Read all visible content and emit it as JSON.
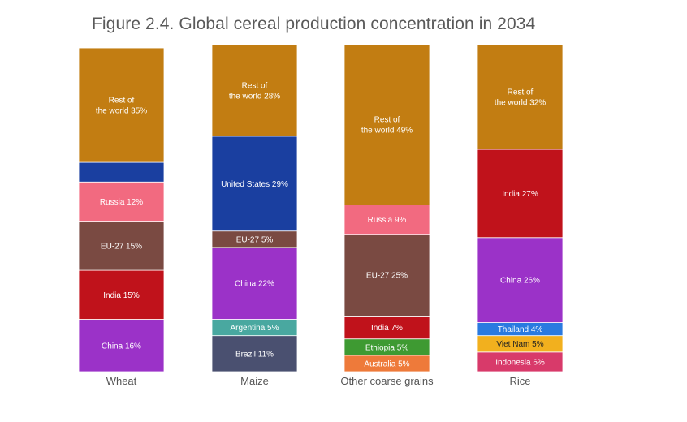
{
  "title": "Figure 2.4. Global cereal production concentration in 2034",
  "chart_data": {
    "type": "bar",
    "stacked": true,
    "normalized_percent": true,
    "title": "Figure 2.4. Global cereal production concentration in 2034",
    "ylim": [
      0,
      100
    ],
    "grid": false,
    "categories": [
      "Wheat",
      "Maize",
      "Other coarse grains",
      "Rice"
    ],
    "bars": [
      {
        "category": "Wheat",
        "segments": [
          {
            "name": "China",
            "value": 16,
            "label": "China 16%",
            "color": "#9b32c8"
          },
          {
            "name": "India",
            "value": 15,
            "label": "India 15%",
            "color": "#c0121b"
          },
          {
            "name": "EU-27",
            "value": 15,
            "label": "EU-27 15%",
            "color": "#7a4a42"
          },
          {
            "name": "Russia",
            "value": 12,
            "label": "Russia 12%",
            "color": "#f26a80"
          },
          {
            "name": "United States",
            "value": 6,
            "label": "",
            "color": "#1a3fa0"
          },
          {
            "name": "Rest of the world",
            "value": 35,
            "label": "Rest of\nthe world 35%",
            "color": "#c27d12"
          }
        ]
      },
      {
        "category": "Maize",
        "segments": [
          {
            "name": "Brazil",
            "value": 11,
            "label": "Brazil 11%",
            "color": "#4a5070"
          },
          {
            "name": "Argentina",
            "value": 5,
            "label": "Argentina 5%",
            "color": "#49a8a0"
          },
          {
            "name": "China",
            "value": 22,
            "label": "China 22%",
            "color": "#9b32c8"
          },
          {
            "name": "EU-27",
            "value": 5,
            "label": "EU-27 5%",
            "color": "#7a4a42"
          },
          {
            "name": "United States",
            "value": 29,
            "label": "United States 29%",
            "color": "#1a3fa0"
          },
          {
            "name": "Rest of the world",
            "value": 28,
            "label": "Rest of\nthe world 28%",
            "color": "#c27d12"
          }
        ]
      },
      {
        "category": "Other coarse grains",
        "segments": [
          {
            "name": "Australia",
            "value": 5,
            "label": "Australia 5%",
            "color": "#ee7a3a"
          },
          {
            "name": "Ethiopia",
            "value": 5,
            "label": "Ethiopia 5%",
            "color": "#3e9a32"
          },
          {
            "name": "India",
            "value": 7,
            "label": "India 7%",
            "color": "#c0121b"
          },
          {
            "name": "EU-27",
            "value": 25,
            "label": "EU-27 25%",
            "color": "#7a4a42"
          },
          {
            "name": "Russia",
            "value": 9,
            "label": "Russia 9%",
            "color": "#f26a80"
          },
          {
            "name": "Rest of the world",
            "value": 49,
            "label": "Rest of\nthe world 49%",
            "color": "#c27d12"
          }
        ]
      },
      {
        "category": "Rice",
        "segments": [
          {
            "name": "Indonesia",
            "value": 6,
            "label": "Indonesia 6%",
            "color": "#d83a6a"
          },
          {
            "name": "Viet Nam",
            "value": 5,
            "label": "Viet Nam 5%",
            "color": "#f2b01e"
          },
          {
            "name": "Thailand",
            "value": 4,
            "label": "Thailand 4%",
            "color": "#2a7ae0"
          },
          {
            "name": "China",
            "value": 26,
            "label": "China 26%",
            "color": "#9b32c8"
          },
          {
            "name": "India",
            "value": 27,
            "label": "India 27%",
            "color": "#c0121b"
          },
          {
            "name": "Rest of the world",
            "value": 32,
            "label": "Rest of\nthe world 32%",
            "color": "#c27d12"
          }
        ]
      }
    ],
    "label_colors": {
      "on_dark": "#ffffff",
      "on_light": "#222222"
    }
  }
}
